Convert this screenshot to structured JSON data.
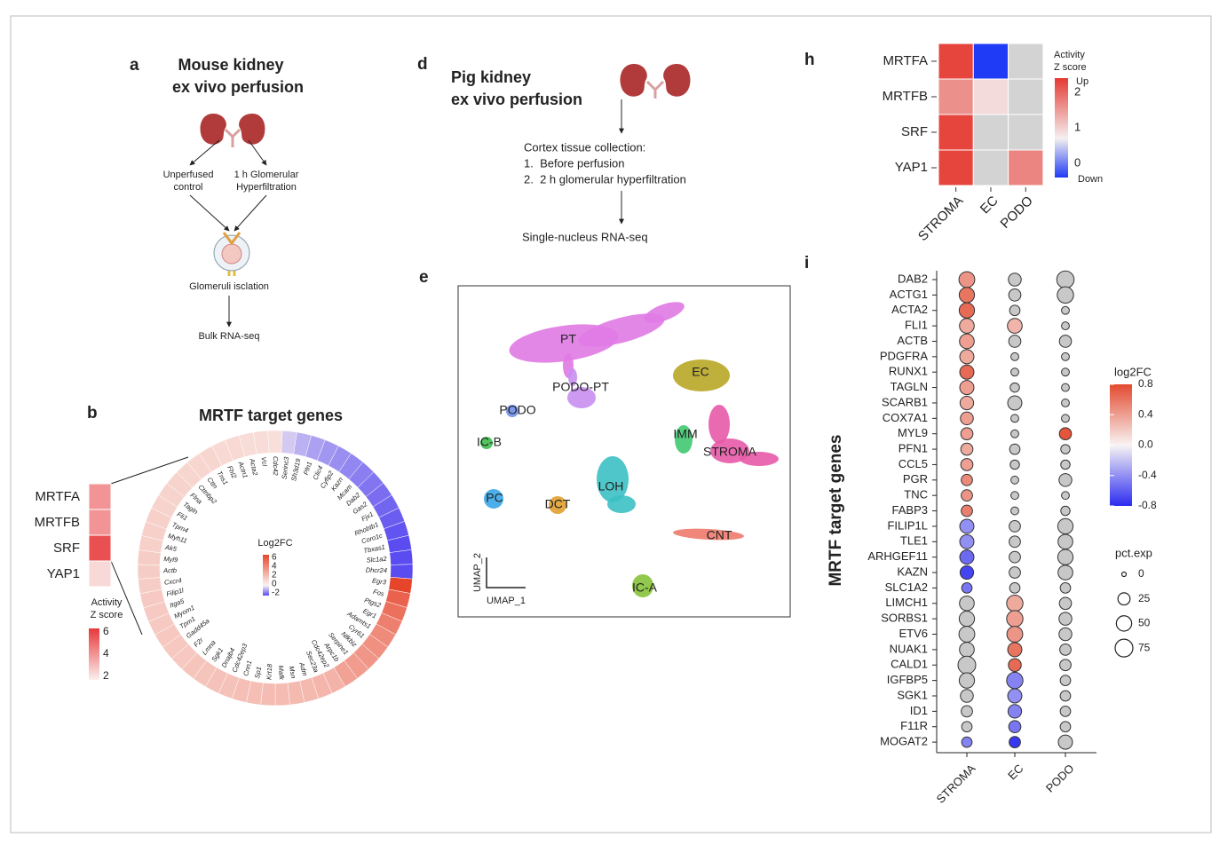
{
  "panel_a": {
    "label": "a",
    "title": [
      "Mouse kidney",
      "ex vivo perfusion"
    ],
    "branches": [
      [
        "Unperfused",
        "control"
      ],
      [
        "1 h Glomerular",
        "Hyperfiltration"
      ]
    ],
    "step": "Glomeruli isclation",
    "output": "Bulk RNA-seq"
  },
  "panel_b": {
    "label": "b",
    "title": "MRTF target genes",
    "heatmap": {
      "rows": [
        "MRTFA",
        "MRTFB",
        "SRF",
        "YAP1"
      ],
      "values": [
        4,
        4,
        5.5,
        2.5
      ],
      "legend_title": [
        "Activity",
        "Z score"
      ],
      "ticks": [
        6,
        4,
        2
      ],
      "lim": [
        2,
        6
      ]
    },
    "circle": {
      "legend_title": "Log2FC",
      "ticks": [
        6,
        4,
        2,
        0,
        -2
      ],
      "lim": [
        -2,
        6
      ],
      "genes": [
        "Serinc3",
        "Sh3d19",
        "Pfn1",
        "Clic4",
        "Cyfip2",
        "Kazn",
        "Mcam",
        "Dab2",
        "Gas2",
        "Fjx1",
        "Rhobtb1",
        "Coro1c",
        "Tbxas1",
        "Slc1a2",
        "Dhcr24",
        "Egr3",
        "Fos",
        "Ptgs2",
        "Egr1",
        "Adamts1",
        "Cyr61",
        "Nfkbiz",
        "Serpine1",
        "Arpc1b",
        "Cdc42ep2",
        "Sec23a",
        "Adm",
        "Msn",
        "Mafk",
        "Krt18",
        "Sp1",
        "Cnn1",
        "Cdc42ep3",
        "Dnajb4",
        "Sgk1",
        "Lmna",
        "F2r",
        "Gadd45a",
        "Tpm1",
        "Myom1",
        "Itga5",
        "Filip1l",
        "Cxcr4",
        "Actb",
        "Myl9",
        "Ak5",
        "Myh11",
        "Tpm4",
        "Fli1",
        "Tagln",
        "Flna",
        "Cttnbp2",
        "Cttn",
        "Tns1",
        "Fhl2",
        "Actn1",
        "Acta2",
        "Vcl",
        "Cdc42"
      ],
      "values": [
        -0.5,
        -0.8,
        -1,
        -1.1,
        -1.2,
        -1.3,
        -1.4,
        -1.5,
        -1.6,
        -1.7,
        -1.8,
        -1.9,
        -2,
        -2,
        -2,
        6,
        5,
        4.5,
        4,
        3.6,
        3.4,
        3.2,
        3,
        2.8,
        2.2,
        2.1,
        2,
        2,
        1.9,
        1.9,
        1.8,
        1.8,
        1.7,
        1.7,
        1.6,
        1.6,
        1.5,
        1.5,
        1.5,
        1.4,
        1.4,
        1.4,
        1.3,
        1.3,
        1.3,
        1.2,
        1.2,
        1.2,
        1.1,
        1.1,
        1.1,
        1,
        1,
        1,
        0.9,
        0.9,
        0.8,
        0.8,
        0.7
      ]
    }
  },
  "panel_d": {
    "label": "d",
    "title": [
      "Pig kidney",
      "ex vivo perfusion"
    ],
    "collection": "Cortex tissue collection:",
    "steps": [
      "1.  Before perfusion",
      "2.  2 h glomerular hyperfiltration"
    ],
    "output": "Single-nucleus RNA-seq"
  },
  "panel_e": {
    "label": "e",
    "x_label": "UMAP_1",
    "y_label": "UMAP_2",
    "clusters": [
      {
        "name": "PT",
        "color": "#e07ae4"
      },
      {
        "name": "PODO-PT",
        "color": "#c88ef0"
      },
      {
        "name": "PODO",
        "color": "#6f8fe8"
      },
      {
        "name": "IC-B",
        "color": "#3fbf4f"
      },
      {
        "name": "PC",
        "color": "#3aa6e8"
      },
      {
        "name": "DCT",
        "color": "#e0a030"
      },
      {
        "name": "LOH",
        "color": "#3cc0c4"
      },
      {
        "name": "EC",
        "color": "#b8a626"
      },
      {
        "name": "IMM",
        "color": "#40c870"
      },
      {
        "name": "STROMA",
        "color": "#e85aa8"
      },
      {
        "name": "CNT",
        "color": "#ee7a6c"
      },
      {
        "name": "IC-A",
        "color": "#86c23a"
      }
    ]
  },
  "panel_h": {
    "label": "h",
    "rows": [
      "MRTFA",
      "MRTFB",
      "SRF",
      "YAP1"
    ],
    "columns": [
      "STROMA",
      "EC",
      "PODO"
    ],
    "values": [
      [
        2.3,
        -0.4,
        null
      ],
      [
        1.6,
        0.9,
        null
      ],
      [
        2.3,
        null,
        null
      ],
      [
        2.3,
        null,
        1.7
      ]
    ],
    "legend_title": [
      "Activity",
      "Z score"
    ],
    "up": "Up",
    "down": "Down",
    "ticks": [
      2,
      1,
      0
    ],
    "lim": [
      -0.4,
      2.4
    ]
  },
  "panel_i": {
    "label": "i",
    "y_label": "MRTF target genes",
    "genes": [
      "DAB2",
      "ACTG1",
      "ACTA2",
      "FLI1",
      "ACTB",
      "PDGFRA",
      "RUNX1",
      "TAGLN",
      "SCARB1",
      "COX7A1",
      "MYL9",
      "PFN1",
      "CCL5",
      "PGR",
      "TNC",
      "FABP3",
      "FILIP1L",
      "TLE1",
      "ARHGEF11",
      "KAZN",
      "SLC1A2",
      "LIMCH1",
      "SORBS1",
      "ETV6",
      "NUAK1",
      "CALD1",
      "IGFBP5",
      "SGK1",
      "ID1",
      "F11R",
      "MOGAT2"
    ],
    "series": [
      {
        "name": "STROMA",
        "log2fc": [
          0.45,
          0.6,
          0.65,
          0.35,
          0.4,
          0.35,
          0.65,
          0.4,
          0.35,
          0.4,
          0.4,
          0.35,
          0.4,
          0.5,
          0.45,
          0.55,
          -0.4,
          -0.4,
          -0.55,
          -0.7,
          -0.5,
          null,
          null,
          null,
          null,
          null,
          null,
          null,
          null,
          null,
          -0.45
        ],
        "pct_exp": [
          55,
          50,
          50,
          45,
          45,
          40,
          40,
          40,
          35,
          30,
          25,
          25,
          25,
          20,
          20,
          20,
          40,
          40,
          40,
          35,
          15,
          45,
          50,
          55,
          45,
          75,
          50,
          30,
          20,
          15,
          15
        ]
      },
      {
        "name": "EC",
        "log2fc": [
          null,
          null,
          null,
          0.3,
          null,
          null,
          null,
          null,
          null,
          null,
          null,
          null,
          null,
          null,
          null,
          null,
          null,
          null,
          null,
          null,
          null,
          0.35,
          0.4,
          0.45,
          0.6,
          0.65,
          -0.45,
          -0.4,
          -0.45,
          -0.5,
          -0.75
        ],
        "pct_exp": [
          30,
          25,
          15,
          45,
          25,
          5,
          5,
          10,
          40,
          5,
          5,
          15,
          10,
          5,
          5,
          5,
          20,
          20,
          20,
          20,
          15,
          60,
          60,
          55,
          40,
          30,
          60,
          40,
          35,
          25,
          20
        ]
      },
      {
        "name": "PODO",
        "log2fc": [
          null,
          null,
          null,
          null,
          null,
          null,
          null,
          null,
          null,
          null,
          0.75,
          null,
          null,
          null,
          null,
          null,
          null,
          null,
          null,
          null,
          null,
          null,
          null,
          null,
          null,
          null,
          null,
          null,
          null,
          null,
          null
        ],
        "pct_exp": [
          70,
          60,
          5,
          5,
          25,
          5,
          5,
          5,
          5,
          5,
          25,
          10,
          10,
          30,
          5,
          10,
          50,
          45,
          50,
          45,
          15,
          25,
          30,
          30,
          20,
          20,
          15,
          15,
          15,
          15,
          40
        ]
      }
    ],
    "color_legend": {
      "title": "log2FC",
      "lim": [
        -0.8,
        0.8
      ],
      "ticks": [
        0.8,
        0.4,
        {
          "value": 0,
          "label": "0.0"
        },
        -0.4,
        -0.8
      ]
    },
    "size_legend": {
      "title": "pct.exp",
      "lim": [
        0,
        75
      ],
      "ticks": [
        0,
        25,
        50,
        75
      ]
    }
  }
}
